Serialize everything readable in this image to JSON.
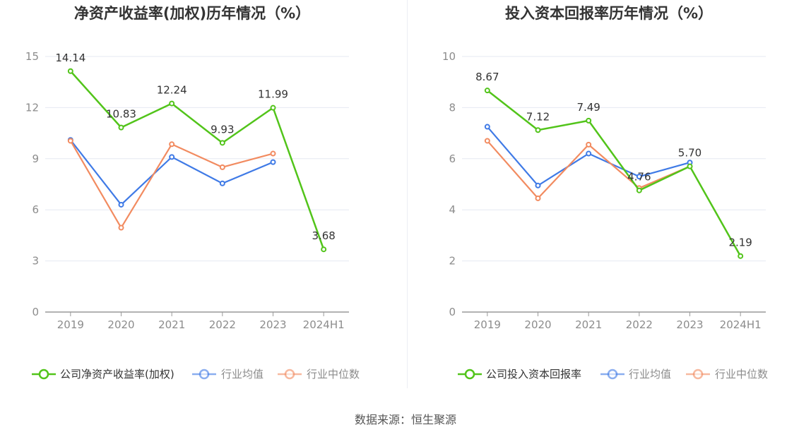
{
  "source": "数据来源：恒生聚源",
  "colors": {
    "company": "#52c41a",
    "avg": "#3f7ae6",
    "median": "#f28b60",
    "grid": "#e6e9f2",
    "axis": "#999999"
  },
  "chart_data": [
    {
      "type": "line",
      "title": "净资产收益率(加权)历年情况（%）",
      "categories": [
        "2019",
        "2020",
        "2021",
        "2022",
        "2023",
        "2024H1"
      ],
      "ylim": [
        0,
        15
      ],
      "yticks": [
        0,
        3,
        6,
        9,
        12,
        15
      ],
      "grid": true,
      "legend_position": "bottom",
      "series": [
        {
          "name": "公司净资产收益率(加权)",
          "key": "company",
          "values": [
            14.14,
            10.83,
            12.24,
            9.93,
            11.99,
            3.68
          ],
          "labels": [
            "14.14",
            "10.83",
            "12.24",
            "9.93",
            "11.99",
            "3.68"
          ]
        },
        {
          "name": "行业均值",
          "key": "avg",
          "values": [
            10.1,
            6.3,
            9.1,
            7.55,
            8.8,
            null
          ]
        },
        {
          "name": "行业中位数",
          "key": "median",
          "values": [
            10.05,
            4.95,
            9.85,
            8.5,
            9.3,
            null
          ]
        }
      ]
    },
    {
      "type": "line",
      "title": "投入资本回报率历年情况（%）",
      "categories": [
        "2019",
        "2020",
        "2021",
        "2022",
        "2023",
        "2024H1"
      ],
      "ylim": [
        0,
        10
      ],
      "yticks": [
        0,
        2,
        4,
        6,
        8,
        10
      ],
      "grid": true,
      "legend_position": "bottom",
      "series": [
        {
          "name": "公司投入资本回报率",
          "key": "company",
          "values": [
            8.67,
            7.12,
            7.49,
            4.76,
            5.7,
            2.19
          ],
          "labels": [
            "8.67",
            "7.12",
            "7.49",
            "4.76",
            "5.70",
            "2.19"
          ]
        },
        {
          "name": "行业均值",
          "key": "avg",
          "values": [
            7.25,
            4.95,
            6.2,
            5.3,
            5.85,
            null
          ]
        },
        {
          "name": "行业中位数",
          "key": "median",
          "values": [
            6.7,
            4.45,
            6.55,
            4.85,
            5.7,
            null
          ]
        }
      ]
    }
  ]
}
